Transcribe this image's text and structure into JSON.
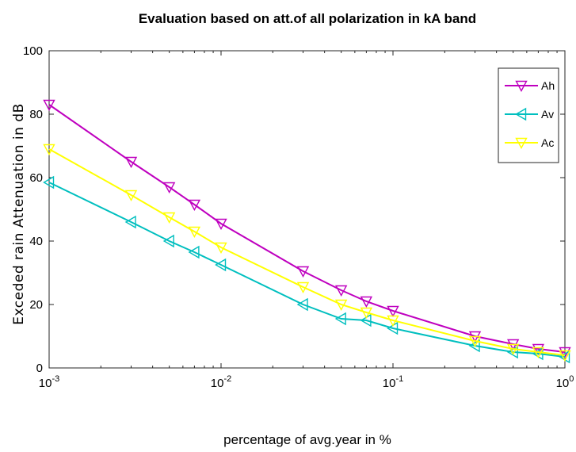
{
  "chart_data": {
    "type": "line",
    "title": "Evaluation based on att.of all polarization in kA band",
    "xlabel": "percentage of avg.year in %",
    "ylabel": "Exceded rain Attenuation in dB",
    "x_scale": "log",
    "xlim": [
      0.001,
      1
    ],
    "ylim": [
      0,
      100
    ],
    "x_ticks": [
      0.001,
      0.01,
      0.1,
      1
    ],
    "x_tick_labels": [
      {
        "base": "10",
        "exp": "-3"
      },
      {
        "base": "10",
        "exp": "-2"
      },
      {
        "base": "10",
        "exp": "-1"
      },
      {
        "base": "10",
        "exp": "0"
      }
    ],
    "y_ticks": [
      0,
      20,
      40,
      60,
      80,
      100
    ],
    "grid": false,
    "legend_position": "top-right",
    "x": [
      0.001,
      0.003,
      0.005,
      0.007,
      0.01,
      0.03,
      0.05,
      0.07,
      0.1,
      0.3,
      0.5,
      0.7,
      1
    ],
    "series": [
      {
        "name": "Ah",
        "color": "#bf00bf",
        "marker": "triangle-down",
        "values": [
          83,
          65,
          57,
          51.5,
          45.5,
          30.5,
          24.5,
          21,
          18,
          10,
          7.5,
          6,
          5
        ]
      },
      {
        "name": "Av",
        "color": "#00bfbf",
        "marker": "triangle-left",
        "values": [
          58.5,
          46,
          40,
          36.5,
          32.5,
          20,
          15.5,
          15,
          12.5,
          7,
          5,
          4.5,
          3.5
        ]
      },
      {
        "name": "Ac",
        "color": "#ffff00",
        "marker": "triangle-down",
        "values": [
          69,
          54.5,
          47.5,
          43,
          38,
          25.5,
          20,
          17.5,
          15,
          8.5,
          6,
          5,
          4
        ]
      }
    ]
  }
}
